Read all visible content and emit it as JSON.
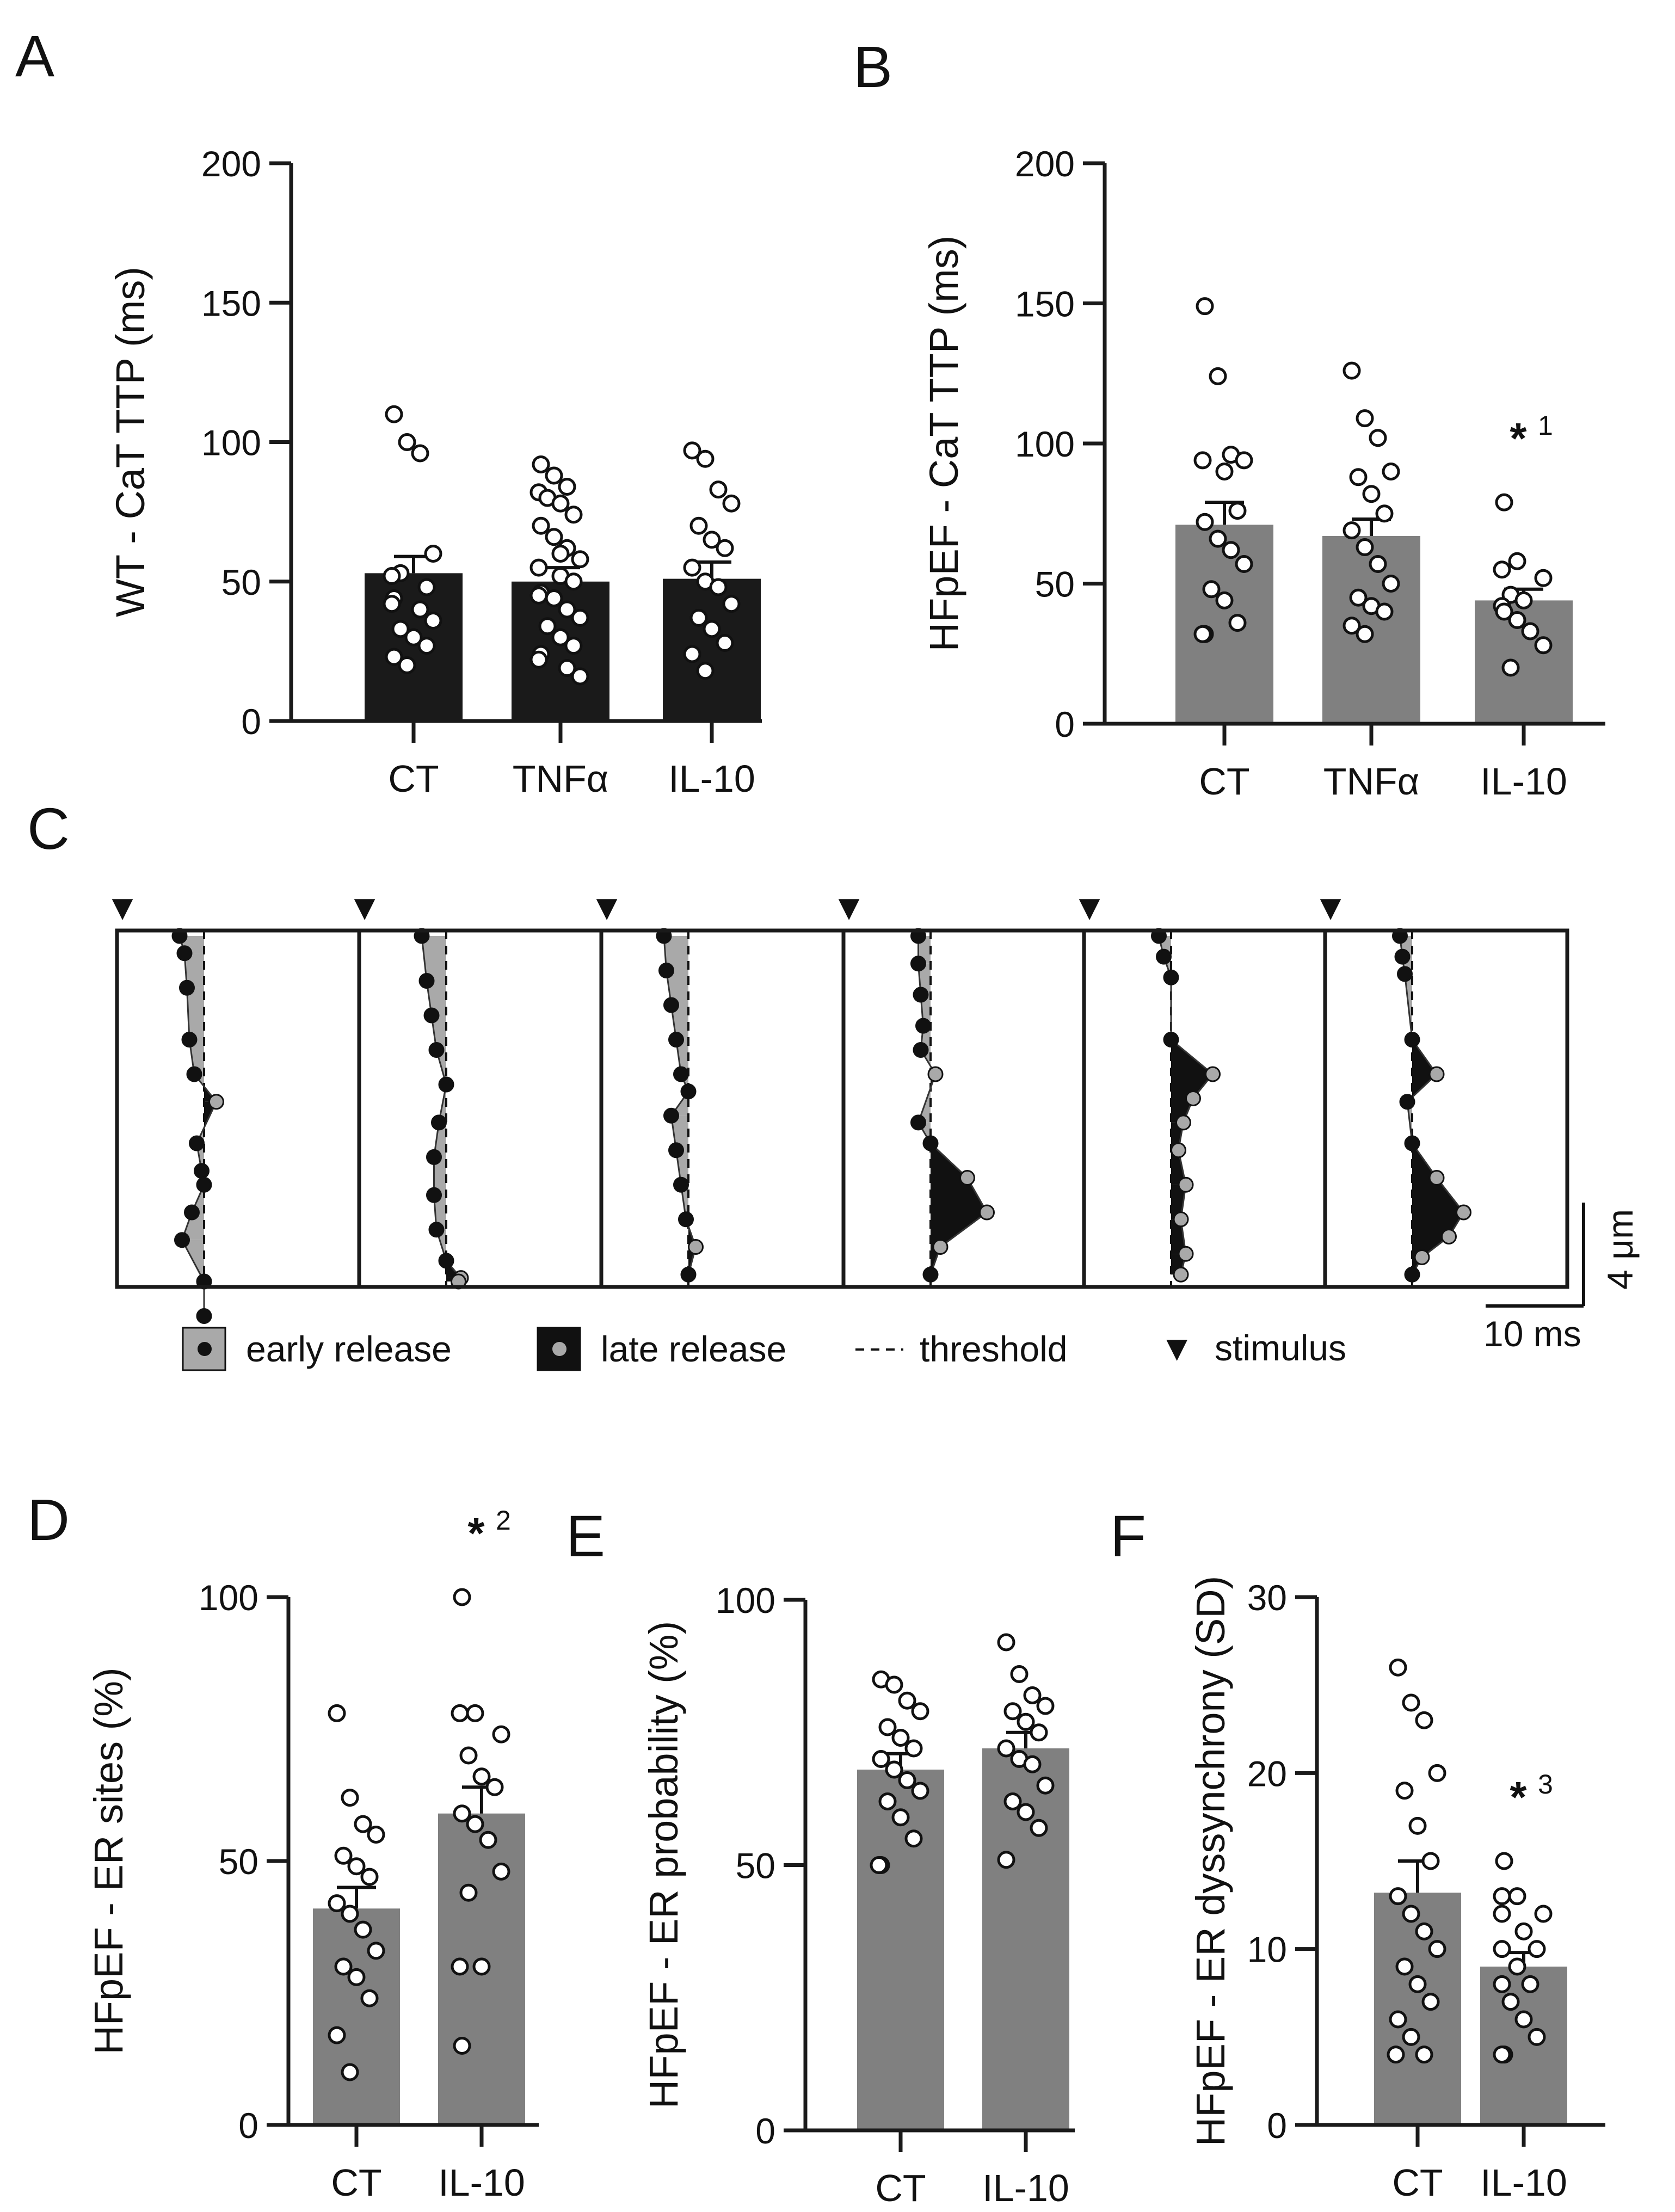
{
  "colors": {
    "wt_bar": "#1a1a1a",
    "hf_bar": "#808080",
    "axis": "#1a1a1a",
    "early_fill": "#a9a9a9",
    "late_fill": "#111111",
    "early_dot": "#111111",
    "late_dot": "#a9a9a9"
  },
  "chart_data": [
    {
      "id": "A",
      "type": "bar",
      "panel_label": "A",
      "ylabel": "WT - CaT TTP (ms)",
      "ylim": [
        0,
        200
      ],
      "yticks": [
        0,
        50,
        100,
        150,
        200
      ],
      "categories": [
        "CT",
        "TNFα",
        "IL-10"
      ],
      "values": [
        53,
        50,
        51
      ],
      "sem": [
        6,
        5,
        6
      ],
      "points": [
        [
          110,
          100,
          96,
          60,
          53,
          52,
          48,
          44,
          42,
          40,
          36,
          33,
          30,
          27,
          23,
          20
        ],
        [
          92,
          88,
          84,
          82,
          80,
          78,
          74,
          70,
          66,
          62,
          58,
          55,
          52,
          50,
          46,
          44,
          40,
          37,
          34,
          30,
          27,
          24,
          22,
          19,
          16,
          45,
          60
        ],
        [
          97,
          94,
          83,
          78,
          70,
          65,
          62,
          55,
          50,
          48,
          42,
          37,
          33,
          28,
          24,
          18
        ]
      ],
      "significance": []
    },
    {
      "id": "B",
      "type": "bar",
      "panel_label": "B",
      "ylabel": "HFpEF - CaT TTP (ms)",
      "ylim": [
        0,
        200
      ],
      "yticks": [
        0,
        50,
        100,
        150,
        200
      ],
      "categories": [
        "CT",
        "TNFα",
        "IL-10"
      ],
      "values": [
        71,
        67,
        44
      ],
      "sem": [
        8,
        6,
        4
      ],
      "points": [
        [
          149,
          124,
          96,
          94,
          94,
          90,
          76,
          72,
          66,
          62,
          57,
          48,
          44,
          36,
          32,
          32
        ],
        [
          126,
          109,
          102,
          90,
          88,
          82,
          75,
          69,
          63,
          57,
          50,
          45,
          42,
          40,
          35,
          32
        ],
        [
          79,
          58,
          55,
          52,
          46,
          44,
          42,
          40,
          37,
          33,
          28,
          20
        ]
      ],
      "significance": [
        {
          "text": "*",
          "sup": "1",
          "category": "IL-10"
        }
      ]
    },
    {
      "id": "D",
      "type": "bar",
      "panel_label": "D",
      "ylabel": "HFpEF - ER sites (%)",
      "ylim": [
        0,
        100
      ],
      "yticks": [
        0,
        50,
        100
      ],
      "categories": [
        "CT",
        "IL-10"
      ],
      "values": [
        41,
        59
      ],
      "sem": [
        4,
        5
      ],
      "points": [
        [
          78,
          62,
          57,
          55,
          51,
          49,
          47,
          42,
          40,
          37,
          33,
          30,
          28,
          24,
          17,
          10
        ],
        [
          100,
          78,
          78,
          74,
          70,
          66,
          64,
          59,
          57,
          54,
          48,
          44,
          30,
          30,
          15
        ]
      ],
      "significance": [
        {
          "text": "*",
          "sup": "2",
          "category": "IL-10"
        }
      ]
    },
    {
      "id": "E",
      "type": "bar",
      "panel_label": "E",
      "ylabel": "HFpEF - ER probability (%)",
      "ylim": [
        0,
        100
      ],
      "yticks": [
        0,
        50,
        100
      ],
      "categories": [
        "CT",
        "IL-10"
      ],
      "values": [
        68,
        72
      ],
      "sem": [
        3,
        3
      ],
      "points": [
        [
          85,
          84,
          81,
          79,
          76,
          74,
          72,
          70,
          68,
          66,
          64,
          62,
          59,
          55,
          50,
          50
        ],
        [
          92,
          86,
          82,
          80,
          79,
          77,
          75,
          72,
          70,
          69,
          65,
          62,
          60,
          57,
          51
        ]
      ],
      "significance": []
    },
    {
      "id": "F",
      "type": "bar",
      "panel_label": "F",
      "ylabel": "HFpEF - ER dyssynchrony (SD)",
      "ylim": [
        0,
        30
      ],
      "yticks": [
        0,
        10,
        20,
        30
      ],
      "categories": [
        "CT",
        "IL-10"
      ],
      "values": [
        13.2,
        9.0
      ],
      "sem": [
        1.8,
        0.8
      ],
      "points": [
        [
          26,
          24,
          23,
          20,
          19,
          17,
          15,
          13,
          12,
          11,
          10,
          9,
          8,
          7,
          6,
          5,
          4,
          4
        ],
        [
          15,
          13,
          13,
          12,
          12,
          11,
          10,
          10,
          9,
          8,
          8,
          7,
          6,
          5,
          4,
          4
        ]
      ],
      "significance": [
        {
          "text": "*",
          "sup": "3",
          "category": "IL-10"
        }
      ]
    }
  ],
  "panel_c": {
    "panel_label": "C",
    "type": "kymograph",
    "threshold_label": "threshold",
    "traces": [
      [
        [
          -1.0,
          0.0
        ],
        [
          -0.8,
          0.5
        ],
        [
          -0.7,
          1.5
        ],
        [
          -0.6,
          3.0
        ],
        [
          -0.4,
          4.0
        ],
        [
          0.5,
          4.8
        ],
        [
          -0.3,
          6.0
        ],
        [
          -0.1,
          6.8
        ],
        [
          0.0,
          7.2
        ],
        [
          -0.5,
          8.0
        ],
        [
          -0.9,
          8.8
        ],
        [
          0.0,
          10.0
        ],
        [
          0.0,
          11.0
        ]
      ],
      [
        [
          -1.0,
          0.0
        ],
        [
          -0.8,
          1.3
        ],
        [
          -0.6,
          2.3
        ],
        [
          -0.4,
          3.3
        ],
        [
          0.0,
          4.3
        ],
        [
          -0.3,
          5.4
        ],
        [
          -0.5,
          6.4
        ],
        [
          -0.5,
          7.5
        ],
        [
          -0.4,
          8.5
        ],
        [
          0.0,
          9.4
        ],
        [
          0.6,
          9.9
        ],
        [
          0.5,
          10.0
        ]
      ],
      [
        [
          -1.0,
          0.0
        ],
        [
          -0.9,
          1.0
        ],
        [
          -0.7,
          2.0
        ],
        [
          -0.5,
          3.0
        ],
        [
          -0.3,
          4.0
        ],
        [
          0.0,
          4.5
        ],
        [
          -0.7,
          5.2
        ],
        [
          -0.5,
          6.2
        ],
        [
          -0.3,
          7.2
        ],
        [
          -0.1,
          8.2
        ],
        [
          0.3,
          9.0
        ],
        [
          0.0,
          9.8
        ]
      ],
      [
        [
          -0.5,
          0.0
        ],
        [
          -0.5,
          0.8
        ],
        [
          -0.4,
          1.7
        ],
        [
          -0.3,
          2.6
        ],
        [
          -0.4,
          3.3
        ],
        [
          0.2,
          4.0
        ],
        [
          -0.5,
          5.4
        ],
        [
          0.0,
          6.0
        ],
        [
          1.5,
          7.0
        ],
        [
          2.3,
          8.0
        ],
        [
          0.4,
          9.0
        ],
        [
          0.0,
          9.8
        ]
      ],
      [
        [
          -0.5,
          0.0
        ],
        [
          -0.3,
          0.6
        ],
        [
          0.0,
          1.2
        ],
        [
          -0.0,
          3.0
        ],
        [
          1.7,
          4.0
        ],
        [
          0.9,
          4.7
        ],
        [
          0.5,
          5.4
        ],
        [
          0.3,
          6.2
        ],
        [
          0.6,
          7.2
        ],
        [
          0.4,
          8.2
        ],
        [
          0.6,
          9.2
        ],
        [
          0.4,
          9.8
        ]
      ],
      [
        [
          -0.5,
          0.0
        ],
        [
          -0.4,
          0.6
        ],
        [
          -0.3,
          1.1
        ],
        [
          0.0,
          3.0
        ],
        [
          1.0,
          4.0
        ],
        [
          -0.2,
          4.8
        ],
        [
          0.0,
          6.0
        ],
        [
          1.0,
          7.0
        ],
        [
          2.1,
          8.0
        ],
        [
          1.5,
          8.7
        ],
        [
          0.4,
          9.3
        ],
        [
          0.0,
          9.8
        ]
      ]
    ],
    "legend": {
      "early": "early release",
      "late": "late release",
      "threshold": "threshold",
      "stimulus": "stimulus",
      "stimulus_glyph": "▼"
    },
    "scalebar": {
      "x_label": "10 ms",
      "y_label": "4 μm"
    }
  }
}
